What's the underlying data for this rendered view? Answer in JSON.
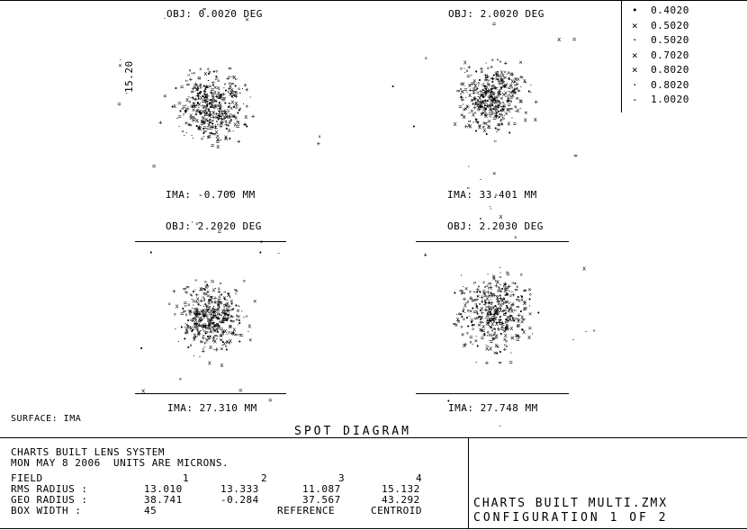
{
  "legend": {
    "entries": [
      {
        "marker": "•",
        "label": "0.4020"
      },
      {
        "marker": "×",
        "label": "0.5020"
      },
      {
        "marker": "·",
        "label": "0.5020"
      },
      {
        "marker": "×",
        "label": "0.7020"
      },
      {
        "marker": "×",
        "label": "0.8020"
      },
      {
        "marker": "·",
        "label": "0.8020"
      },
      {
        "marker": "-",
        "label": "1.0020"
      }
    ]
  },
  "panels": [
    {
      "id": "p1",
      "obj": "OBJ: 0.0020 DEG",
      "img": "IMA: -0.700 MM",
      "side_label": "15.20"
    },
    {
      "id": "p2",
      "obj": "OBJ: 2.0020 DEG",
      "img": "IMA: 33.401 MM",
      "side_label": ""
    },
    {
      "id": "p3",
      "obj": "OBJ: 2.2020 DEG",
      "img": "IMA: 27.310 MM",
      "side_label": ""
    },
    {
      "id": "p4",
      "obj": "OBJ: 2.2030 DEG",
      "img": "IMA: 27.748 MM",
      "side_label": ""
    }
  ],
  "surface_label": "SURFACE: IMA",
  "diagram_title": "SPOT DIAGRAM",
  "info": {
    "line1": "CHARTS BUILT LENS SYSTEM",
    "line2": "MON MAY 8 2006  UNITS ARE MICRONS.",
    "field_label": "FIELD",
    "field_values": [
      "1",
      "2",
      "3",
      "4"
    ],
    "rms_label": "RMS RADIUS :",
    "rms_values": [
      "13.010",
      "13.333",
      "11.087",
      "15.132"
    ],
    "geo_label": "GEO RADIUS :",
    "geo_values": [
      "38.741",
      "-0.284",
      "37.567",
      "43.292"
    ],
    "box_label": "BOX WIDTH :",
    "box_value": "45",
    "reference_label": "REFERENCE",
    "reference_value": "CENTROID"
  },
  "footer": {
    "line1": "CHARTS BUILT MULTI.ZMX",
    "line2": "CONFIGURATION 1 OF 2"
  }
}
